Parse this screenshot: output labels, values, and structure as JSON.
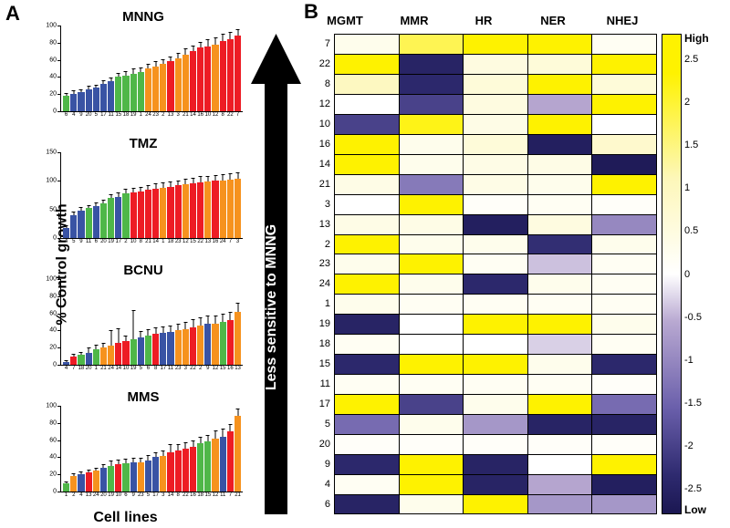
{
  "panelA": {
    "label": "A",
    "yaxis_label": "% Control growth",
    "xaxis_label": "Cell lines",
    "label_fontsize": 16,
    "title_fontsize": 15,
    "tick_fontsize": 7,
    "bar_colors": {
      "blue": "#3953a4",
      "green": "#4fb748",
      "orange": "#f6921e",
      "red": "#ed1c24"
    },
    "charts": [
      {
        "title": "MNNG",
        "ylim": [
          0,
          100
        ],
        "ytick_step": 20,
        "bars": [
          {
            "x": "6",
            "v": 18,
            "e": 3,
            "c": "green"
          },
          {
            "x": "4",
            "v": 20,
            "e": 4,
            "c": "blue"
          },
          {
            "x": "9",
            "v": 22,
            "e": 3,
            "c": "blue"
          },
          {
            "x": "20",
            "v": 26,
            "e": 4,
            "c": "blue"
          },
          {
            "x": "5",
            "v": 28,
            "e": 3,
            "c": "blue"
          },
          {
            "x": "17",
            "v": 32,
            "e": 4,
            "c": "blue"
          },
          {
            "x": "11",
            "v": 35,
            "e": 4,
            "c": "blue"
          },
          {
            "x": "15",
            "v": 40,
            "e": 5,
            "c": "green"
          },
          {
            "x": "18",
            "v": 42,
            "e": 5,
            "c": "green"
          },
          {
            "x": "19",
            "v": 44,
            "e": 6,
            "c": "green"
          },
          {
            "x": "1",
            "v": 46,
            "e": 5,
            "c": "green"
          },
          {
            "x": "24",
            "v": 50,
            "e": 5,
            "c": "orange"
          },
          {
            "x": "23",
            "v": 52,
            "e": 6,
            "c": "orange"
          },
          {
            "x": "2",
            "v": 55,
            "e": 6,
            "c": "orange"
          },
          {
            "x": "13",
            "v": 58,
            "e": 6,
            "c": "red"
          },
          {
            "x": "3",
            "v": 62,
            "e": 6,
            "c": "orange"
          },
          {
            "x": "21",
            "v": 66,
            "e": 7,
            "c": "orange"
          },
          {
            "x": "14",
            "v": 70,
            "e": 7,
            "c": "red"
          },
          {
            "x": "16",
            "v": 74,
            "e": 7,
            "c": "red"
          },
          {
            "x": "10",
            "v": 76,
            "e": 8,
            "c": "red"
          },
          {
            "x": "12",
            "v": 78,
            "e": 8,
            "c": "orange"
          },
          {
            "x": "8",
            "v": 82,
            "e": 8,
            "c": "red"
          },
          {
            "x": "22",
            "v": 84,
            "e": 8,
            "c": "red"
          },
          {
            "x": "7",
            "v": 88,
            "e": 8,
            "c": "red"
          }
        ]
      },
      {
        "title": "TMZ",
        "ylim": [
          0,
          150
        ],
        "ytick_step": 50,
        "bars": [
          {
            "x": "4",
            "v": 18,
            "e": 5,
            "c": "blue"
          },
          {
            "x": "5",
            "v": 40,
            "e": 6,
            "c": "blue"
          },
          {
            "x": "9",
            "v": 48,
            "e": 6,
            "c": "blue"
          },
          {
            "x": "11",
            "v": 52,
            "e": 6,
            "c": "green"
          },
          {
            "x": "6",
            "v": 56,
            "e": 6,
            "c": "blue"
          },
          {
            "x": "20",
            "v": 60,
            "e": 7,
            "c": "green"
          },
          {
            "x": "19",
            "v": 70,
            "e": 7,
            "c": "green"
          },
          {
            "x": "17",
            "v": 72,
            "e": 8,
            "c": "blue"
          },
          {
            "x": "2",
            "v": 78,
            "e": 8,
            "c": "green"
          },
          {
            "x": "10",
            "v": 80,
            "e": 8,
            "c": "red"
          },
          {
            "x": "8",
            "v": 82,
            "e": 8,
            "c": "red"
          },
          {
            "x": "21",
            "v": 84,
            "e": 8,
            "c": "red"
          },
          {
            "x": "14",
            "v": 86,
            "e": 9,
            "c": "red"
          },
          {
            "x": "1",
            "v": 88,
            "e": 9,
            "c": "orange"
          },
          {
            "x": "18",
            "v": 90,
            "e": 9,
            "c": "red"
          },
          {
            "x": "23",
            "v": 92,
            "e": 9,
            "c": "red"
          },
          {
            "x": "12",
            "v": 94,
            "e": 10,
            "c": "orange"
          },
          {
            "x": "15",
            "v": 96,
            "e": 10,
            "c": "red"
          },
          {
            "x": "22",
            "v": 98,
            "e": 10,
            "c": "red"
          },
          {
            "x": "13",
            "v": 99,
            "e": 10,
            "c": "orange"
          },
          {
            "x": "16",
            "v": 100,
            "e": 10,
            "c": "red"
          },
          {
            "x": "24",
            "v": 100,
            "e": 11,
            "c": "orange"
          },
          {
            "x": "7",
            "v": 102,
            "e": 11,
            "c": "orange"
          },
          {
            "x": "3",
            "v": 104,
            "e": 11,
            "c": "orange"
          }
        ]
      },
      {
        "title": "BCNU",
        "ylim": [
          0,
          100
        ],
        "ytick_step": 20,
        "bars": [
          {
            "x": "4",
            "v": 3,
            "e": 2,
            "c": "blue"
          },
          {
            "x": "7",
            "v": 10,
            "e": 3,
            "c": "red"
          },
          {
            "x": "18",
            "v": 12,
            "e": 3,
            "c": "green"
          },
          {
            "x": "20",
            "v": 14,
            "e": 6,
            "c": "blue"
          },
          {
            "x": "1",
            "v": 18,
            "e": 5,
            "c": "green"
          },
          {
            "x": "21",
            "v": 20,
            "e": 5,
            "c": "orange"
          },
          {
            "x": "24",
            "v": 22,
            "e": 18,
            "c": "orange"
          },
          {
            "x": "14",
            "v": 26,
            "e": 16,
            "c": "red"
          },
          {
            "x": "10",
            "v": 28,
            "e": 6,
            "c": "red"
          },
          {
            "x": "19",
            "v": 30,
            "e": 33,
            "c": "green"
          },
          {
            "x": "5",
            "v": 32,
            "e": 7,
            "c": "blue"
          },
          {
            "x": "6",
            "v": 34,
            "e": 7,
            "c": "green"
          },
          {
            "x": "8",
            "v": 36,
            "e": 8,
            "c": "red"
          },
          {
            "x": "17",
            "v": 37,
            "e": 8,
            "c": "blue"
          },
          {
            "x": "11",
            "v": 38,
            "e": 8,
            "c": "blue"
          },
          {
            "x": "23",
            "v": 40,
            "e": 8,
            "c": "orange"
          },
          {
            "x": "3",
            "v": 42,
            "e": 8,
            "c": "orange"
          },
          {
            "x": "22",
            "v": 44,
            "e": 9,
            "c": "red"
          },
          {
            "x": "2",
            "v": 46,
            "e": 9,
            "c": "orange"
          },
          {
            "x": "9",
            "v": 48,
            "e": 9,
            "c": "blue"
          },
          {
            "x": "12",
            "v": 48,
            "e": 9,
            "c": "orange"
          },
          {
            "x": "15",
            "v": 50,
            "e": 9,
            "c": "green"
          },
          {
            "x": "16",
            "v": 52,
            "e": 10,
            "c": "red"
          },
          {
            "x": "13",
            "v": 62,
            "e": 10,
            "c": "orange"
          }
        ]
      },
      {
        "title": "MMS",
        "ylim": [
          0,
          100
        ],
        "ytick_step": 20,
        "bars": [
          {
            "x": "1",
            "v": 10,
            "e": 2,
            "c": "green"
          },
          {
            "x": "2",
            "v": 18,
            "e": 3,
            "c": "orange"
          },
          {
            "x": "4",
            "v": 20,
            "e": 3,
            "c": "blue"
          },
          {
            "x": "13",
            "v": 22,
            "e": 3,
            "c": "red"
          },
          {
            "x": "24",
            "v": 24,
            "e": 4,
            "c": "orange"
          },
          {
            "x": "20",
            "v": 28,
            "e": 4,
            "c": "blue"
          },
          {
            "x": "19",
            "v": 30,
            "e": 6,
            "c": "green"
          },
          {
            "x": "10",
            "v": 32,
            "e": 5,
            "c": "red"
          },
          {
            "x": "6",
            "v": 33,
            "e": 5,
            "c": "green"
          },
          {
            "x": "9",
            "v": 34,
            "e": 5,
            "c": "blue"
          },
          {
            "x": "23",
            "v": 34,
            "e": 5,
            "c": "orange"
          },
          {
            "x": "5",
            "v": 36,
            "e": 6,
            "c": "blue"
          },
          {
            "x": "17",
            "v": 40,
            "e": 6,
            "c": "blue"
          },
          {
            "x": "3",
            "v": 42,
            "e": 6,
            "c": "orange"
          },
          {
            "x": "14",
            "v": 46,
            "e": 9,
            "c": "red"
          },
          {
            "x": "8",
            "v": 48,
            "e": 7,
            "c": "red"
          },
          {
            "x": "22",
            "v": 50,
            "e": 7,
            "c": "red"
          },
          {
            "x": "16",
            "v": 52,
            "e": 8,
            "c": "red"
          },
          {
            "x": "18",
            "v": 56,
            "e": 8,
            "c": "green"
          },
          {
            "x": "15",
            "v": 58,
            "e": 8,
            "c": "green"
          },
          {
            "x": "12",
            "v": 62,
            "e": 9,
            "c": "orange"
          },
          {
            "x": "11",
            "v": 64,
            "e": 9,
            "c": "blue"
          },
          {
            "x": "7",
            "v": 70,
            "e": 9,
            "c": "red"
          },
          {
            "x": "21",
            "v": 88,
            "e": 9,
            "c": "orange"
          }
        ]
      }
    ]
  },
  "panelB": {
    "label": "B",
    "arrow_text": "Less sensitive to MNNG",
    "arrow_fill": "#000000",
    "columns": [
      "MGMT",
      "MMR",
      "HR",
      "NER",
      "NHEJ"
    ],
    "row_order": [
      7,
      22,
      8,
      12,
      10,
      16,
      14,
      21,
      3,
      13,
      2,
      23,
      24,
      1,
      19,
      18,
      15,
      11,
      17,
      5,
      20,
      9,
      4,
      6
    ],
    "values": {
      "7": [
        0.3,
        1.8,
        2.7,
        2.6,
        0.2
      ],
      "22": [
        2.6,
        -2.5,
        0.5,
        0.6,
        2.5
      ],
      "8": [
        1.0,
        -2.4,
        0.6,
        2.4,
        0.6
      ],
      "12": [
        0.0,
        -2.0,
        0.5,
        -0.6,
        2.4
      ],
      "10": [
        -2.0,
        2.2,
        0.4,
        2.4,
        0.0
      ],
      "16": [
        2.5,
        0.3,
        0.6,
        -2.6,
        0.8
      ],
      "14": [
        2.6,
        0.3,
        0.4,
        0.4,
        -2.7
      ],
      "21": [
        0.4,
        -1.2,
        0.4,
        0.3,
        2.5
      ],
      "3": [
        0.0,
        2.5,
        0.1,
        0.2,
        0.1
      ],
      "13": [
        0.4,
        0.4,
        -2.6,
        0.5,
        -1.0
      ],
      "2": [
        2.4,
        0.3,
        0.3,
        -2.3,
        0.3
      ],
      "23": [
        0.3,
        2.6,
        0.2,
        -0.4,
        0.2
      ],
      "24": [
        2.5,
        0.3,
        -2.4,
        0.3,
        0.2
      ],
      "1": [
        0.3,
        0.2,
        0.2,
        0.2,
        0.2
      ],
      "19": [
        -2.5,
        0.0,
        2.5,
        2.5,
        0.3
      ],
      "18": [
        0.2,
        0.0,
        0.0,
        -0.3,
        0.2
      ],
      "15": [
        -2.4,
        2.4,
        2.4,
        0.3,
        -2.4
      ],
      "11": [
        0.2,
        0.2,
        0.2,
        0.2,
        0.1
      ],
      "17": [
        2.4,
        -2.0,
        0.3,
        2.6,
        -1.4
      ],
      "5": [
        -1.4,
        0.3,
        -0.8,
        -2.5,
        -2.5
      ],
      "20": [
        0.1,
        0.1,
        0.1,
        0.1,
        0.1
      ],
      "9": [
        -2.4,
        2.5,
        -2.5,
        0.0,
        2.5
      ],
      "4": [
        0.2,
        2.6,
        -2.5,
        -0.6,
        -2.6
      ],
      "6": [
        -2.5,
        0.3,
        2.6,
        -0.8,
        -0.8
      ]
    },
    "colorscale": {
      "min": -2.8,
      "max": 2.8,
      "ticks": [
        2.5,
        2,
        1.5,
        1,
        0.5,
        0,
        -0.5,
        -1,
        -1.5,
        -2,
        -2.5
      ],
      "high_label": "High",
      "low_label": "Low",
      "stops": [
        {
          "p": 0.0,
          "c": "#fef200"
        },
        {
          "p": 0.08,
          "c": "#fef200"
        },
        {
          "p": 0.3,
          "c": "#fdf7b9"
        },
        {
          "p": 0.5,
          "c": "#ffffff"
        },
        {
          "p": 0.6,
          "c": "#b8a8d1"
        },
        {
          "p": 0.78,
          "c": "#6a5fab"
        },
        {
          "p": 0.92,
          "c": "#2e2a6f"
        },
        {
          "p": 1.0,
          "c": "#1b1752"
        }
      ]
    },
    "header_fontsize": 13,
    "rowlabel_fontsize": 11
  }
}
